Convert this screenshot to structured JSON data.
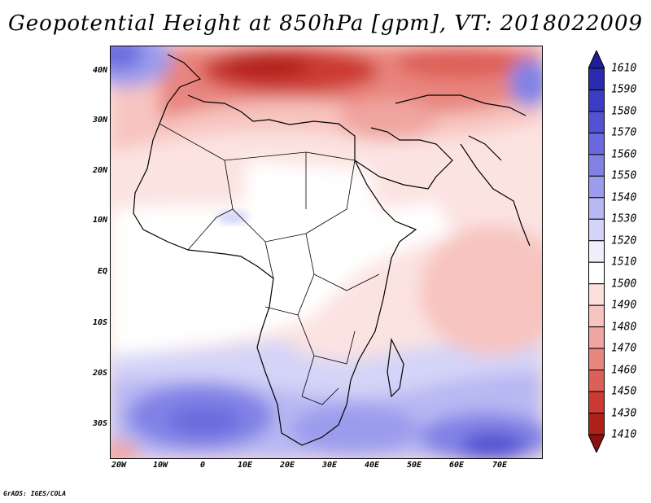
{
  "title": "Geopotential Height at 850hPa [gpm], VT: 2018022009",
  "footer": "GrADS: IGES/COLA",
  "lat_labels": [
    "40N",
    "30N",
    "20N",
    "10N",
    "EQ",
    "10S",
    "20S",
    "30S"
  ],
  "lon_labels": [
    "20W",
    "10W",
    "0",
    "10E",
    "20E",
    "30E",
    "40E",
    "50E",
    "60E",
    "70E"
  ],
  "colorbar": {
    "labels": [
      "1610",
      "1590",
      "1580",
      "1570",
      "1560",
      "1550",
      "1540",
      "1530",
      "1520",
      "1510",
      "1500",
      "1490",
      "1480",
      "1470",
      "1460",
      "1450",
      "1430",
      "1410"
    ],
    "colors": [
      "#1e1e96",
      "#2b2bb0",
      "#3c3cc4",
      "#5252d2",
      "#6a6ade",
      "#8282e6",
      "#9c9ced",
      "#b8b8f3",
      "#d4d4f8",
      "#eeeefc",
      "#ffffff",
      "#fbe0de",
      "#f7c4c0",
      "#f0a6a0",
      "#e8857e",
      "#dd6058",
      "#cc3a33",
      "#b2201c",
      "#8c1010"
    ]
  }
}
